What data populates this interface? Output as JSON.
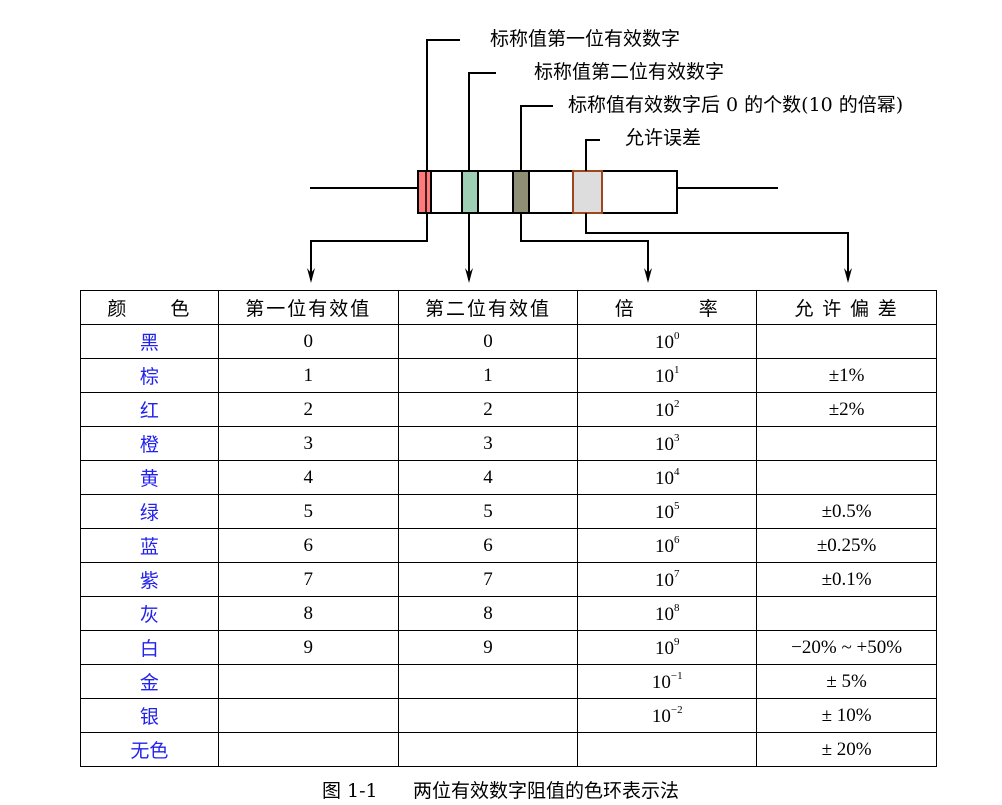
{
  "diagram": {
    "labels": {
      "first_digit": "标称值第一位有效数字",
      "second_digit": "标称值第二位有效数字",
      "multiplier": "标称值有效数字后 0 的个数(10 的倍幂)",
      "tolerance": "允许误差"
    },
    "band_colors": {
      "first": "#ff7a7a",
      "second": "#9ccfb4",
      "multiplier": "#8f8f75",
      "tolerance": "#dddddd",
      "tolerance_border": "#a0461e"
    }
  },
  "table": {
    "headers": [
      "颜　　色",
      "第一位有效值",
      "第二位有效值",
      "倍　　　率",
      "允 许 偏 差"
    ],
    "rows": [
      {
        "color": "黑",
        "d1": "0",
        "d2": "0",
        "base": "10",
        "exp": "0",
        "tol": ""
      },
      {
        "color": "棕",
        "d1": "1",
        "d2": "1",
        "base": "10",
        "exp": "1",
        "tol": "±1%"
      },
      {
        "color": "红",
        "d1": "2",
        "d2": "2",
        "base": "10",
        "exp": "2",
        "tol": "±2%"
      },
      {
        "color": "橙",
        "d1": "3",
        "d2": "3",
        "base": "10",
        "exp": "3",
        "tol": ""
      },
      {
        "color": "黄",
        "d1": "4",
        "d2": "4",
        "base": "10",
        "exp": "4",
        "tol": ""
      },
      {
        "color": "绿",
        "d1": "5",
        "d2": "5",
        "base": "10",
        "exp": "5",
        "tol": "±0.5%"
      },
      {
        "color": "蓝",
        "d1": "6",
        "d2": "6",
        "base": "10",
        "exp": "6",
        "tol": "±0.25%"
      },
      {
        "color": "紫",
        "d1": "7",
        "d2": "7",
        "base": "10",
        "exp": "7",
        "tol": "±0.1%"
      },
      {
        "color": "灰",
        "d1": "8",
        "d2": "8",
        "base": "10",
        "exp": "8",
        "tol": ""
      },
      {
        "color": "白",
        "d1": "9",
        "d2": "9",
        "base": "10",
        "exp": "9",
        "tol": "−20% ~ +50%"
      },
      {
        "color": "金",
        "d1": "",
        "d2": "",
        "base": "10",
        "exp": "−1",
        "tol": "± 5%"
      },
      {
        "color": "银",
        "d1": "",
        "d2": "",
        "base": "10",
        "exp": "−2",
        "tol": "± 10%"
      },
      {
        "color": "无色",
        "d1": "",
        "d2": "",
        "base": "",
        "exp": "",
        "tol": "± 20%"
      }
    ],
    "color_name_color": "#2222ee"
  },
  "caption": {
    "number": "图 1-1",
    "text": "两位有效数字阻值的色环表示法"
  }
}
